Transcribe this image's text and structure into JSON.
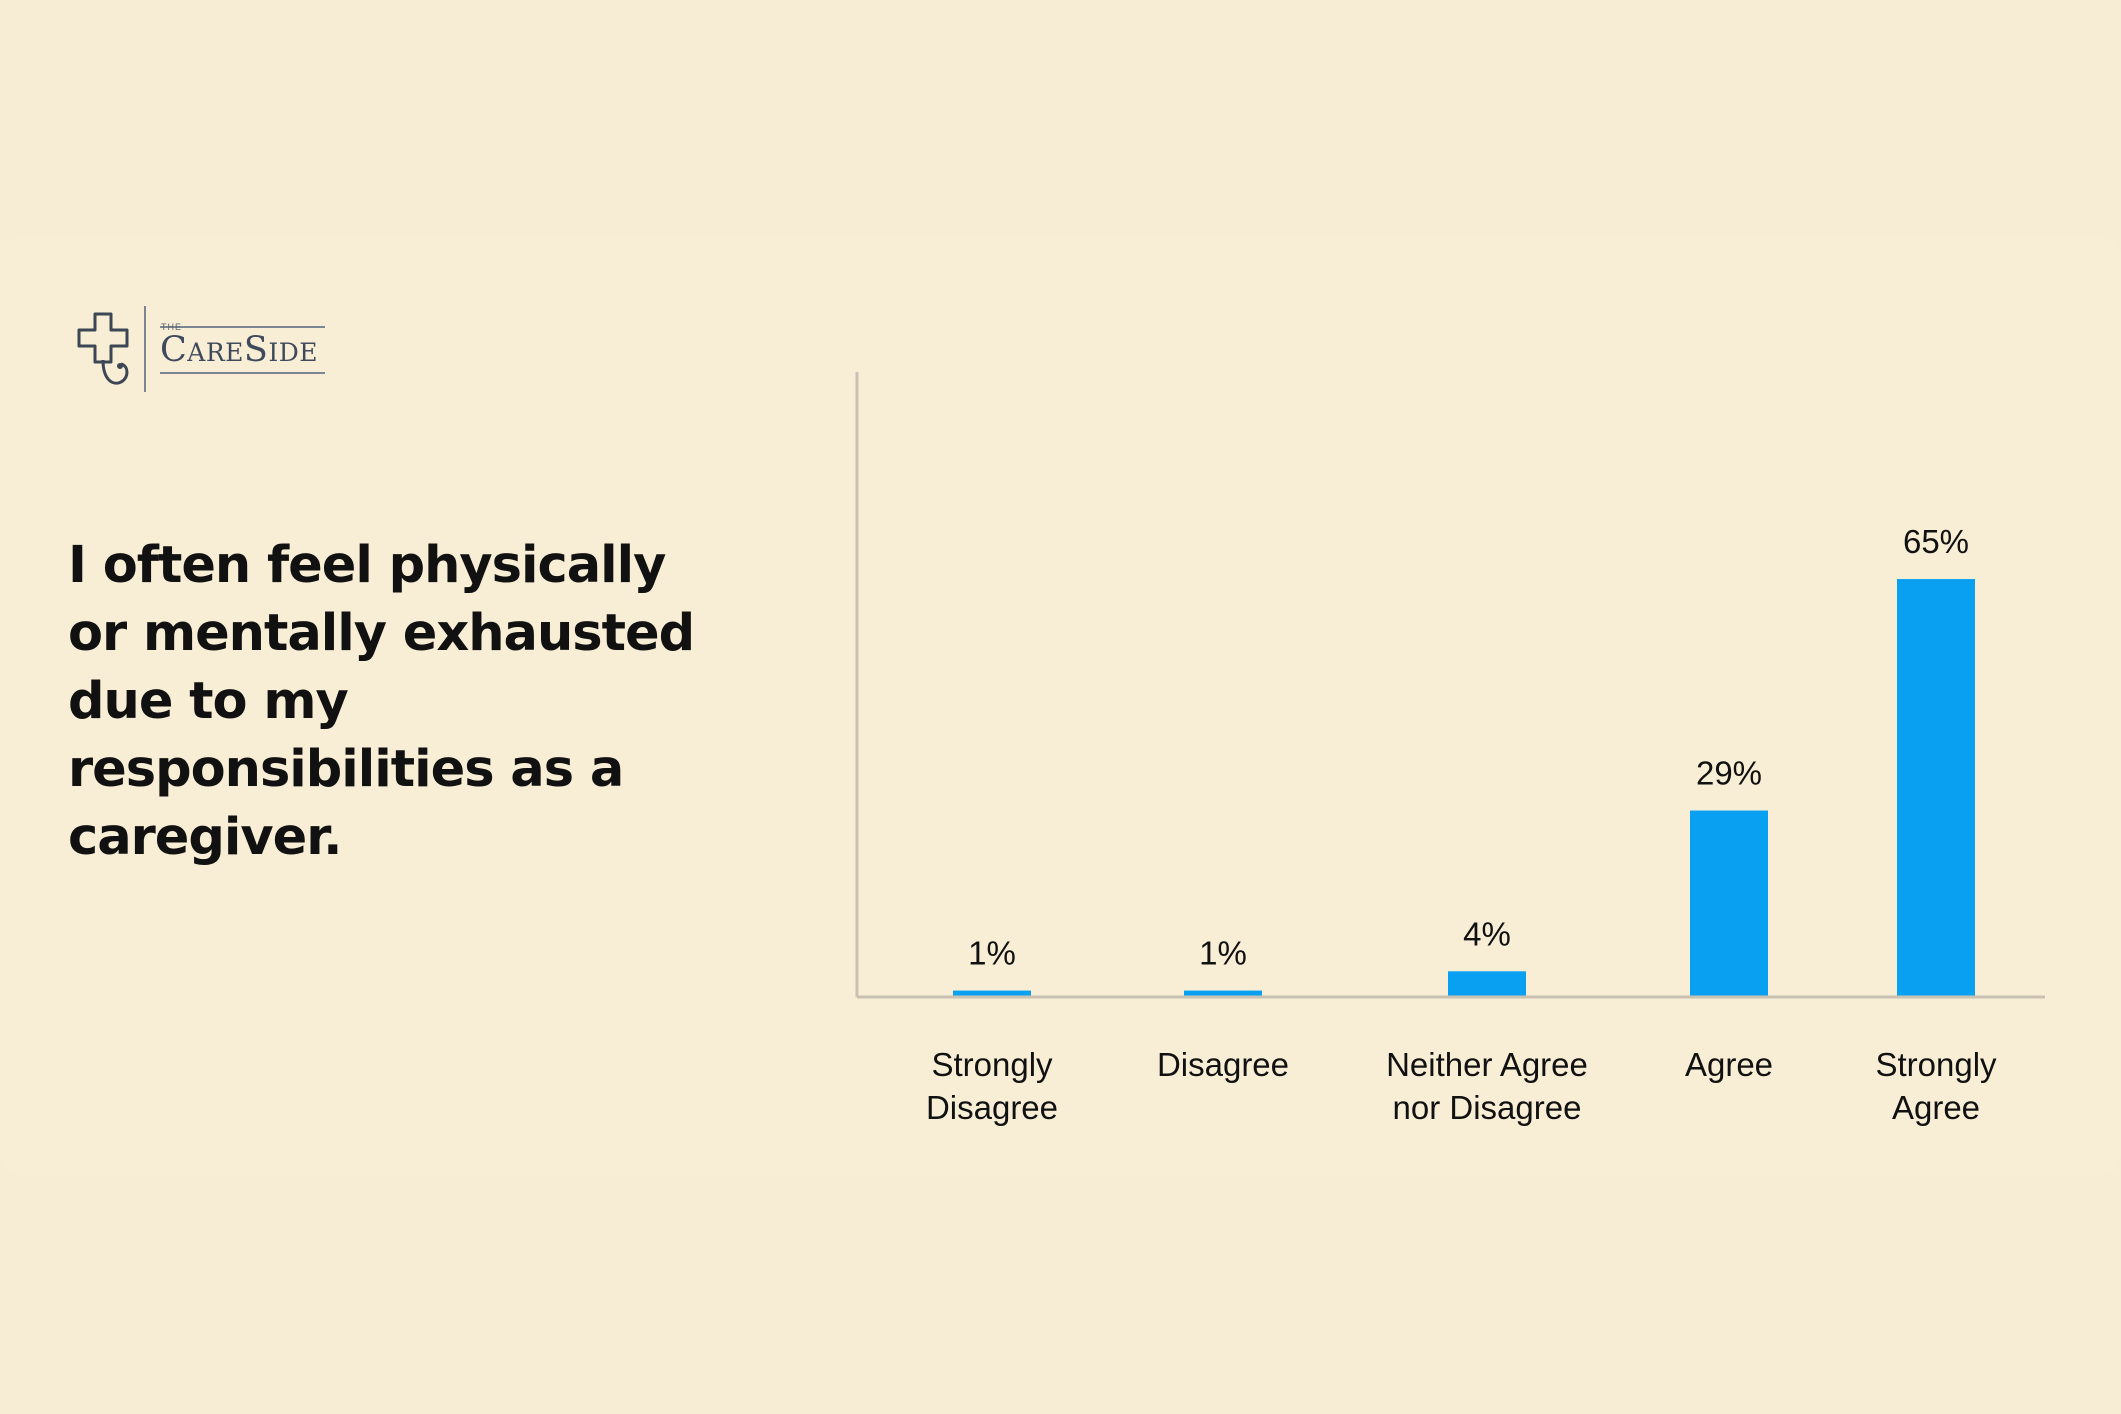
{
  "brand": {
    "logo_small": "THE",
    "logo_name": "CareSide",
    "logo_icon": "cross-stethoscope-icon"
  },
  "question": "I often feel physically or mentally exhausted due to my responsibilities as a caregiver.",
  "colors": {
    "background": "#f7edd4",
    "bar": "#0aa0f2",
    "axis": "#c9c2b3",
    "text": "#111111"
  },
  "chart_data": {
    "type": "bar",
    "title": "I often feel physically or mentally exhausted due to my responsibilities as a caregiver.",
    "categories": [
      [
        "Strongly",
        "Disagree"
      ],
      [
        "Disagree"
      ],
      [
        "Neither Agree",
        "nor Disagree"
      ],
      [
        "Agree"
      ],
      [
        "Strongly",
        "Agree"
      ]
    ],
    "values": [
      1,
      1,
      4,
      29,
      65
    ],
    "labels": [
      "1%",
      "1%",
      "4%",
      "29%",
      "65%"
    ],
    "ylim": [
      0,
      100
    ],
    "xlabel": "",
    "ylabel": "",
    "grid": false
  }
}
